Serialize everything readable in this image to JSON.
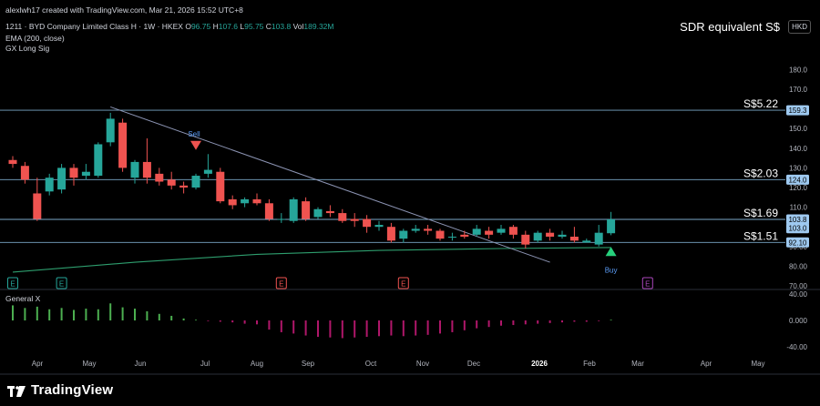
{
  "header": {
    "author_line": "alexlwh17 created with TradingView.com, Mar 21, 2026 15:52 UTC+8",
    "symbol": "1211 · BYD Company Limited Class H · 1W · HKEX",
    "ohlc": {
      "o_label": "O",
      "o": "96.75",
      "h_label": "H",
      "h": "107.6",
      "l_label": "L",
      "l": "95.75",
      "c_label": "C",
      "c": "103.8",
      "v_label": "Vol",
      "v": "189.32M"
    },
    "indicator1": "EMA (200, close)",
    "indicator2": "GX Long Sig",
    "sdr_label": "SDR equivalent S$",
    "currency": "HKD"
  },
  "oscillator": {
    "title": "General X"
  },
  "footer": {
    "brand": "TradingView"
  },
  "colors": {
    "up": "#26a69a",
    "down": "#ef5350",
    "ema": "#2e9e6e",
    "hline": "#7aa7c7",
    "trend": "#8c94b3",
    "osc_pos": "#4caf50",
    "osc_neg": "#b0176a",
    "buy": "#26d07c"
  },
  "chart_data": {
    "type": "candlestick",
    "y_ticks": [
      "70.00",
      "80.00",
      "90.00",
      "100.0",
      "110.0",
      "120.0",
      "130.0",
      "140.0",
      "150.0",
      "160.0",
      "170.0",
      "180.0"
    ],
    "ylim": [
      70,
      190
    ],
    "x_labels": [
      "Apr",
      "May",
      "Jun",
      "Jul",
      "Aug",
      "Sep",
      "Oct",
      "Nov",
      "Dec",
      "2026",
      "Feb",
      "Mar",
      "Apr",
      "May"
    ],
    "candles": [
      {
        "o": 134,
        "h": 136,
        "l": 130,
        "c": 132
      },
      {
        "o": 131,
        "h": 133,
        "l": 122,
        "c": 124
      },
      {
        "o": 117,
        "h": 125,
        "l": 103,
        "c": 104
      },
      {
        "o": 118,
        "h": 127,
        "l": 116,
        "c": 125
      },
      {
        "o": 119,
        "h": 132,
        "l": 117,
        "c": 130
      },
      {
        "o": 130,
        "h": 132,
        "l": 121,
        "c": 125
      },
      {
        "o": 126,
        "h": 132,
        "l": 124,
        "c": 128
      },
      {
        "o": 126,
        "h": 143,
        "l": 125,
        "c": 142
      },
      {
        "o": 143,
        "h": 158,
        "l": 141,
        "c": 155
      },
      {
        "o": 153,
        "h": 155,
        "l": 128,
        "c": 130
      },
      {
        "o": 125,
        "h": 134,
        "l": 122,
        "c": 133
      },
      {
        "o": 133,
        "h": 145,
        "l": 122,
        "c": 125
      },
      {
        "o": 127,
        "h": 130,
        "l": 121,
        "c": 123
      },
      {
        "o": 124,
        "h": 128,
        "l": 119,
        "c": 121
      },
      {
        "o": 121,
        "h": 123,
        "l": 117,
        "c": 120
      },
      {
        "o": 120,
        "h": 127,
        "l": 119,
        "c": 126
      },
      {
        "o": 127,
        "h": 137,
        "l": 125,
        "c": 129
      },
      {
        "o": 128,
        "h": 130,
        "l": 112,
        "c": 113
      },
      {
        "o": 114,
        "h": 116,
        "l": 109,
        "c": 111
      },
      {
        "o": 112,
        "h": 115,
        "l": 110,
        "c": 114
      },
      {
        "o": 114,
        "h": 117,
        "l": 111,
        "c": 112
      },
      {
        "o": 112,
        "h": 114,
        "l": 103,
        "c": 104
      },
      {
        "o": 104,
        "h": 107,
        "l": 102,
        "c": 104
      },
      {
        "o": 103,
        "h": 115,
        "l": 102,
        "c": 114
      },
      {
        "o": 113,
        "h": 115,
        "l": 103,
        "c": 104
      },
      {
        "o": 105,
        "h": 110,
        "l": 104,
        "c": 109
      },
      {
        "o": 108,
        "h": 111,
        "l": 105,
        "c": 107
      },
      {
        "o": 107,
        "h": 109,
        "l": 102,
        "c": 103
      },
      {
        "o": 104,
        "h": 107,
        "l": 100,
        "c": 103
      },
      {
        "o": 104,
        "h": 106,
        "l": 97,
        "c": 100
      },
      {
        "o": 100,
        "h": 103,
        "l": 98,
        "c": 101
      },
      {
        "o": 100,
        "h": 102,
        "l": 92,
        "c": 93
      },
      {
        "o": 94,
        "h": 99,
        "l": 92,
        "c": 98
      },
      {
        "o": 98,
        "h": 101,
        "l": 97,
        "c": 99
      },
      {
        "o": 99,
        "h": 101,
        "l": 96,
        "c": 98
      },
      {
        "o": 98,
        "h": 99,
        "l": 93,
        "c": 94
      },
      {
        "o": 95,
        "h": 97,
        "l": 93,
        "c": 95
      },
      {
        "o": 96,
        "h": 98,
        "l": 94,
        "c": 95
      },
      {
        "o": 96,
        "h": 101,
        "l": 95,
        "c": 99
      },
      {
        "o": 98,
        "h": 100,
        "l": 94,
        "c": 96
      },
      {
        "o": 97,
        "h": 101,
        "l": 96,
        "c": 99
      },
      {
        "o": 100,
        "h": 101,
        "l": 94,
        "c": 96
      },
      {
        "o": 96,
        "h": 98,
        "l": 89,
        "c": 91
      },
      {
        "o": 93,
        "h": 98,
        "l": 92,
        "c": 97
      },
      {
        "o": 97,
        "h": 99,
        "l": 93,
        "c": 95
      },
      {
        "o": 95,
        "h": 98,
        "l": 94,
        "c": 96
      },
      {
        "o": 95,
        "h": 100,
        "l": 92,
        "c": 93
      },
      {
        "o": 92,
        "h": 94,
        "l": 92,
        "c": 93
      },
      {
        "o": 91,
        "h": 101,
        "l": 90,
        "c": 97
      },
      {
        "o": 96.75,
        "h": 107.6,
        "l": 95.75,
        "c": 103.8
      }
    ],
    "ema": [
      {
        "i": 0,
        "v": 77
      },
      {
        "i": 10,
        "v": 82
      },
      {
        "i": 20,
        "v": 86
      },
      {
        "i": 30,
        "v": 88
      },
      {
        "i": 40,
        "v": 89
      },
      {
        "i": 49,
        "v": 89.5
      }
    ],
    "trendline": [
      {
        "i": 8,
        "v": 161
      },
      {
        "i": 44,
        "v": 82
      }
    ],
    "levels": [
      {
        "label": "S$5.22",
        "value": 159.3,
        "tag": "159.3"
      },
      {
        "label": "S$2.03",
        "value": 124.0,
        "tag": "124.0"
      },
      {
        "label": "S$1.69",
        "value": 103.8,
        "tag": "103.8"
      },
      {
        "label": "S$1.51",
        "value": 92.1,
        "tag": "92.10"
      }
    ],
    "extra_tag": {
      "value": 103.0,
      "tag": "103.0"
    },
    "signals": [
      {
        "type": "sell",
        "i": 15,
        "value": 140,
        "label": "Sell"
      },
      {
        "type": "buy",
        "i": 49,
        "value": 87,
        "label": "Buy"
      }
    ],
    "event_markers": [
      {
        "i": 0,
        "label": "E",
        "kind": "green"
      },
      {
        "i": 4,
        "label": "E",
        "kind": "green"
      },
      {
        "i": 22,
        "label": "E",
        "kind": "red"
      },
      {
        "i": 32,
        "label": "E",
        "kind": "red"
      },
      {
        "i": 52,
        "label": "E",
        "kind": "purple"
      }
    ],
    "osc_ticks": [
      "40.00",
      "0.000",
      "-40.00"
    ],
    "osc_ylim": [
      -40,
      40
    ],
    "osc_values": [
      23,
      19,
      21,
      17,
      19,
      16,
      18,
      17,
      26,
      20,
      18,
      14,
      10,
      7,
      3,
      1,
      -1,
      -2,
      -3,
      -5,
      -6,
      -14,
      -18,
      -20,
      -23,
      -25,
      -26,
      -27,
      -26,
      -25,
      -24,
      -23,
      -24,
      -23,
      -22,
      -20,
      -18,
      -15,
      -12,
      -10,
      -8,
      -7,
      -6,
      -5,
      -4,
      -3,
      -2,
      -2,
      -1,
      1
    ]
  }
}
